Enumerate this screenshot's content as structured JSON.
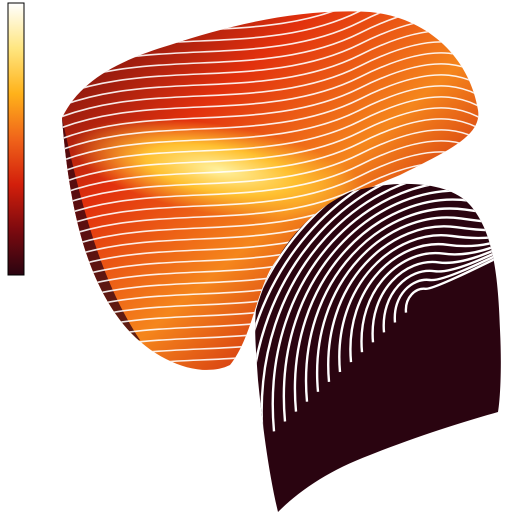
{
  "colorbar": {
    "colors": [
      "#ffffff",
      "#ffe680",
      "#ffb21a",
      "#f0641a",
      "#d31f0b",
      "#7d0a0f",
      "#2a0410"
    ]
  }
}
